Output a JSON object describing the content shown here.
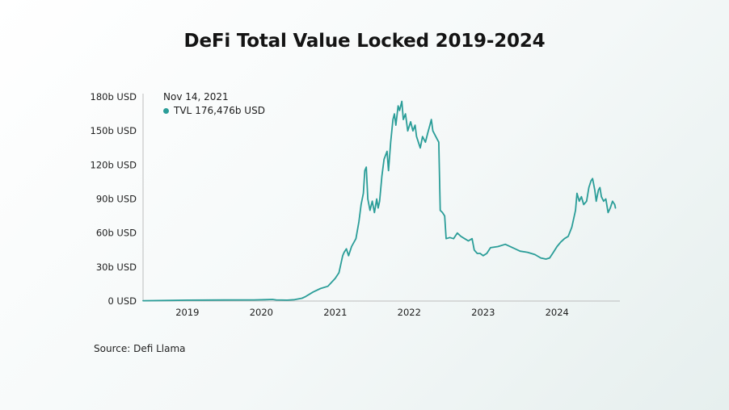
{
  "title": "DeFi Total Value Locked 2019-2024",
  "source": "Source: Defi Llama",
  "tooltip": {
    "date": "Nov 14, 2021",
    "series": "TVL",
    "value": "176,476b USD"
  },
  "colors": {
    "line": "#2a9d98",
    "axis": "#bdbdbd",
    "text": "#1c1c1c"
  },
  "chart_data": {
    "type": "line",
    "title": "DeFi Total Value Locked 2019-2024",
    "xlabel": "",
    "ylabel": "",
    "y_unit": "b USD",
    "yticks": [
      0,
      30,
      60,
      90,
      120,
      150,
      180
    ],
    "ytick_labels": [
      "0 USD",
      "30b USD",
      "60b USD",
      "90b USD",
      "120b USD",
      "150b USD",
      "180b USD"
    ],
    "ylim": [
      0,
      180
    ],
    "xlim": [
      2018.4,
      2024.85
    ],
    "xticks": [
      2019,
      2020,
      2021,
      2022,
      2023,
      2024
    ],
    "xtick_labels": [
      "2019",
      "2020",
      "2021",
      "2022",
      "2023",
      "2024"
    ],
    "grid": false,
    "series": [
      {
        "values": [
          [
            2018.4,
            0.3
          ],
          [
            2018.8,
            0.6
          ],
          [
            2019.0,
            0.8
          ],
          [
            2019.5,
            0.9
          ],
          [
            2019.9,
            1.0
          ],
          [
            2020.05,
            1.2
          ],
          [
            2020.15,
            1.4
          ],
          [
            2020.2,
            1.0
          ],
          [
            2020.35,
            0.8
          ],
          [
            2020.45,
            1.2
          ],
          [
            2020.55,
            2.5
          ],
          [
            2020.6,
            4.0
          ],
          [
            2020.7,
            8.0
          ],
          [
            2020.8,
            11.0
          ],
          [
            2020.9,
            13.0
          ],
          [
            2021.0,
            20.0
          ],
          [
            2021.05,
            25.0
          ],
          [
            2021.1,
            40.0
          ],
          [
            2021.12,
            43.0
          ],
          [
            2021.15,
            46.0
          ],
          [
            2021.18,
            40.0
          ],
          [
            2021.22,
            48.0
          ],
          [
            2021.28,
            55.0
          ],
          [
            2021.32,
            70.0
          ],
          [
            2021.35,
            85.0
          ],
          [
            2021.38,
            95.0
          ],
          [
            2021.4,
            115.0
          ],
          [
            2021.42,
            118.0
          ],
          [
            2021.44,
            90.0
          ],
          [
            2021.47,
            80.0
          ],
          [
            2021.5,
            88.0
          ],
          [
            2021.53,
            78.0
          ],
          [
            2021.56,
            90.0
          ],
          [
            2021.58,
            82.0
          ],
          [
            2021.6,
            88.0
          ],
          [
            2021.63,
            110.0
          ],
          [
            2021.66,
            125.0
          ],
          [
            2021.7,
            132.0
          ],
          [
            2021.72,
            115.0
          ],
          [
            2021.75,
            140.0
          ],
          [
            2021.78,
            160.0
          ],
          [
            2021.8,
            165.0
          ],
          [
            2021.82,
            155.0
          ],
          [
            2021.85,
            172.0
          ],
          [
            2021.87,
            168.0
          ],
          [
            2021.9,
            176.0
          ],
          [
            2021.92,
            160.0
          ],
          [
            2021.95,
            165.0
          ],
          [
            2021.98,
            150.0
          ],
          [
            2022.02,
            158.0
          ],
          [
            2022.05,
            150.0
          ],
          [
            2022.08,
            155.0
          ],
          [
            2022.1,
            145.0
          ],
          [
            2022.15,
            135.0
          ],
          [
            2022.18,
            145.0
          ],
          [
            2022.22,
            140.0
          ],
          [
            2022.25,
            148.0
          ],
          [
            2022.28,
            155.0
          ],
          [
            2022.3,
            160.0
          ],
          [
            2022.32,
            150.0
          ],
          [
            2022.36,
            145.0
          ],
          [
            2022.4,
            140.0
          ],
          [
            2022.42,
            80.0
          ],
          [
            2022.45,
            78.0
          ],
          [
            2022.48,
            75.0
          ],
          [
            2022.5,
            55.0
          ],
          [
            2022.55,
            56.0
          ],
          [
            2022.6,
            55.0
          ],
          [
            2022.65,
            60.0
          ],
          [
            2022.7,
            57.0
          ],
          [
            2022.75,
            55.0
          ],
          [
            2022.8,
            53.0
          ],
          [
            2022.85,
            55.0
          ],
          [
            2022.88,
            45.0
          ],
          [
            2022.92,
            42.0
          ],
          [
            2022.96,
            42.0
          ],
          [
            2023.0,
            40.0
          ],
          [
            2023.05,
            42.0
          ],
          [
            2023.1,
            47.0
          ],
          [
            2023.2,
            48.0
          ],
          [
            2023.3,
            50.0
          ],
          [
            2023.4,
            47.0
          ],
          [
            2023.5,
            44.0
          ],
          [
            2023.6,
            43.0
          ],
          [
            2023.7,
            41.0
          ],
          [
            2023.78,
            38.0
          ],
          [
            2023.85,
            37.0
          ],
          [
            2023.9,
            38.0
          ],
          [
            2023.95,
            43.0
          ],
          [
            2024.0,
            48.0
          ],
          [
            2024.05,
            52.0
          ],
          [
            2024.1,
            55.0
          ],
          [
            2024.15,
            57.0
          ],
          [
            2024.2,
            65.0
          ],
          [
            2024.25,
            80.0
          ],
          [
            2024.27,
            95.0
          ],
          [
            2024.3,
            88.0
          ],
          [
            2024.33,
            92.0
          ],
          [
            2024.36,
            85.0
          ],
          [
            2024.4,
            88.0
          ],
          [
            2024.43,
            100.0
          ],
          [
            2024.46,
            106.0
          ],
          [
            2024.48,
            108.0
          ],
          [
            2024.51,
            98.0
          ],
          [
            2024.53,
            88.0
          ],
          [
            2024.56,
            98.0
          ],
          [
            2024.58,
            100.0
          ],
          [
            2024.6,
            92.0
          ],
          [
            2024.63,
            88.0
          ],
          [
            2024.66,
            90.0
          ],
          [
            2024.69,
            78.0
          ],
          [
            2024.72,
            82.0
          ],
          [
            2024.75,
            88.0
          ],
          [
            2024.78,
            85.0
          ],
          [
            2024.79,
            82.0
          ]
        ]
      }
    ]
  }
}
